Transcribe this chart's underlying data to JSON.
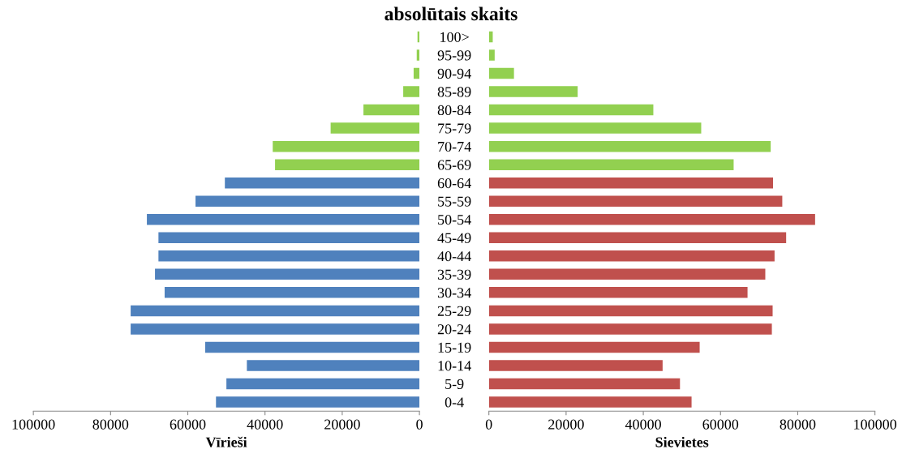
{
  "chart_data": [
    {
      "type": "bar",
      "orientation": "horizontal",
      "title": "absolūtais skaits",
      "xlabel": "Vīrieši",
      "categories": [
        "100>",
        "95-99",
        "90-94",
        "85-89",
        "80-84",
        "75-79",
        "70-74",
        "65-69",
        "60-64",
        "55-59",
        "50-54",
        "45-49",
        "40-44",
        "35-39",
        "30-34",
        "25-29",
        "20-24",
        "15-19",
        "10-14",
        "5-9",
        "0-4"
      ],
      "values": [
        500,
        700,
        1500,
        4200,
        14500,
        23000,
        38000,
        37400,
        50400,
        58000,
        70600,
        67600,
        67600,
        68500,
        66000,
        74800,
        74800,
        55500,
        44700,
        50000,
        52700
      ],
      "colors": [
        "#92d050",
        "#92d050",
        "#92d050",
        "#92d050",
        "#92d050",
        "#92d050",
        "#92d050",
        "#92d050",
        "#4f81bd",
        "#4f81bd",
        "#4f81bd",
        "#4f81bd",
        "#4f81bd",
        "#4f81bd",
        "#4f81bd",
        "#4f81bd",
        "#4f81bd",
        "#4f81bd",
        "#4f81bd",
        "#4f81bd",
        "#4f81bd"
      ],
      "xlim": [
        100000,
        0
      ],
      "xticks": [
        100000,
        80000,
        60000,
        40000,
        20000,
        0
      ],
      "grid": false,
      "legend": false
    },
    {
      "type": "bar",
      "orientation": "horizontal",
      "xlabel": "Sievietes",
      "tick_labels": "x",
      "categories": [
        null,
        null,
        null,
        null,
        null,
        null,
        null,
        null,
        null,
        null,
        null,
        null,
        null,
        null,
        null,
        null,
        null,
        null,
        null,
        null,
        null
      ],
      "values": [
        1000,
        1500,
        6500,
        23000,
        42600,
        55000,
        73000,
        63400,
        73600,
        76000,
        84500,
        77000,
        74000,
        71600,
        67000,
        73500,
        73300,
        54600,
        45000,
        49500,
        52500
      ],
      "colors": [
        "#92d050",
        "#92d050",
        "#92d050",
        "#92d050",
        "#92d050",
        "#92d050",
        "#92d050",
        "#92d050",
        "#c0504d",
        "#c0504d",
        "#c0504d",
        "#c0504d",
        "#c0504d",
        "#c0504d",
        "#c0504d",
        "#c0504d",
        "#c0504d",
        "#c0504d",
        "#c0504d",
        "#c0504d",
        "#c0504d"
      ],
      "xlim": [
        0,
        100000
      ],
      "xticks": [
        0,
        20000,
        40000,
        60000,
        80000,
        100000
      ],
      "grid": false,
      "legend": false
    }
  ]
}
